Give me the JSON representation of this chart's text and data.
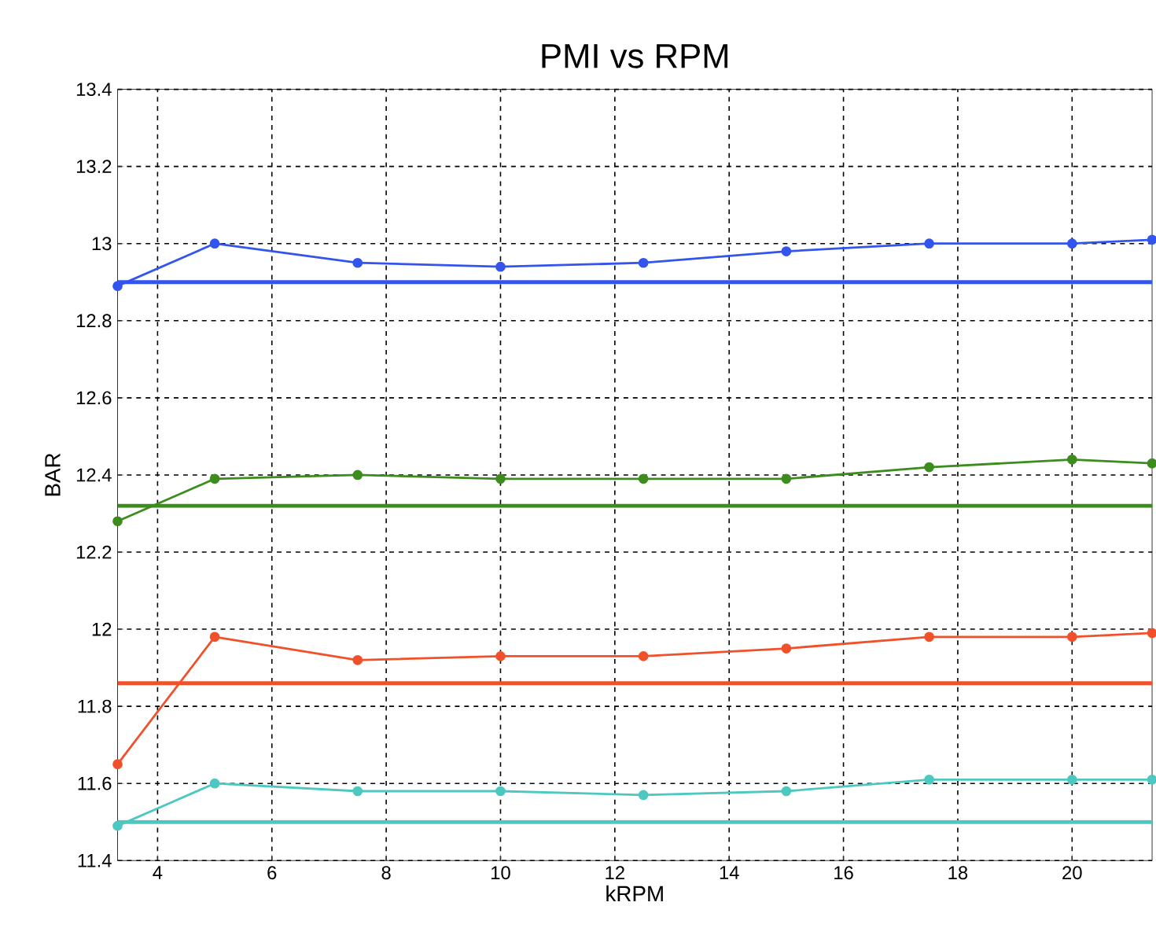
{
  "chart_data": {
    "type": "line",
    "title": "PMI vs RPM",
    "xlabel": "kRPM",
    "ylabel": "BAR",
    "x": [
      3.3,
      5,
      7.5,
      10,
      12.5,
      15,
      17.5,
      20,
      21.4
    ],
    "series": [
      {
        "color": "#3355ee",
        "values": [
          12.89,
          13.0,
          12.95,
          12.94,
          12.95,
          12.98,
          13.0,
          13.0,
          13.01
        ]
      },
      {
        "color": "#3d8c1e",
        "values": [
          12.28,
          12.39,
          12.4,
          12.39,
          12.39,
          12.39,
          12.42,
          12.44,
          12.43
        ]
      },
      {
        "color": "#f0502a",
        "values": [
          11.65,
          11.98,
          11.92,
          11.93,
          11.93,
          11.95,
          11.98,
          11.98,
          11.99
        ]
      },
      {
        "color": "#4cc8c0",
        "values": [
          11.49,
          11.6,
          11.58,
          11.58,
          11.57,
          11.58,
          11.61,
          11.61,
          11.61
        ]
      }
    ],
    "ref_lines": [
      {
        "axis": "y",
        "value": 12.9,
        "color": "#3355ee"
      },
      {
        "axis": "y",
        "value": 12.32,
        "color": "#3d8c1e"
      },
      {
        "axis": "y",
        "value": 11.86,
        "color": "#f0502a"
      },
      {
        "axis": "y",
        "value": 11.5,
        "color": "#4cc8c0"
      }
    ],
    "xlim": [
      3.3,
      21.4
    ],
    "ylim": [
      11.4,
      13.4
    ],
    "xticks": [
      4,
      6,
      8,
      10,
      12,
      14,
      16,
      18,
      20
    ],
    "yticks": [
      11.4,
      11.6,
      11.8,
      12,
      12.2,
      12.4,
      12.6,
      12.8,
      13,
      13.2,
      13.4
    ],
    "grid": true,
    "marker": "circle",
    "line_style": "solid"
  }
}
